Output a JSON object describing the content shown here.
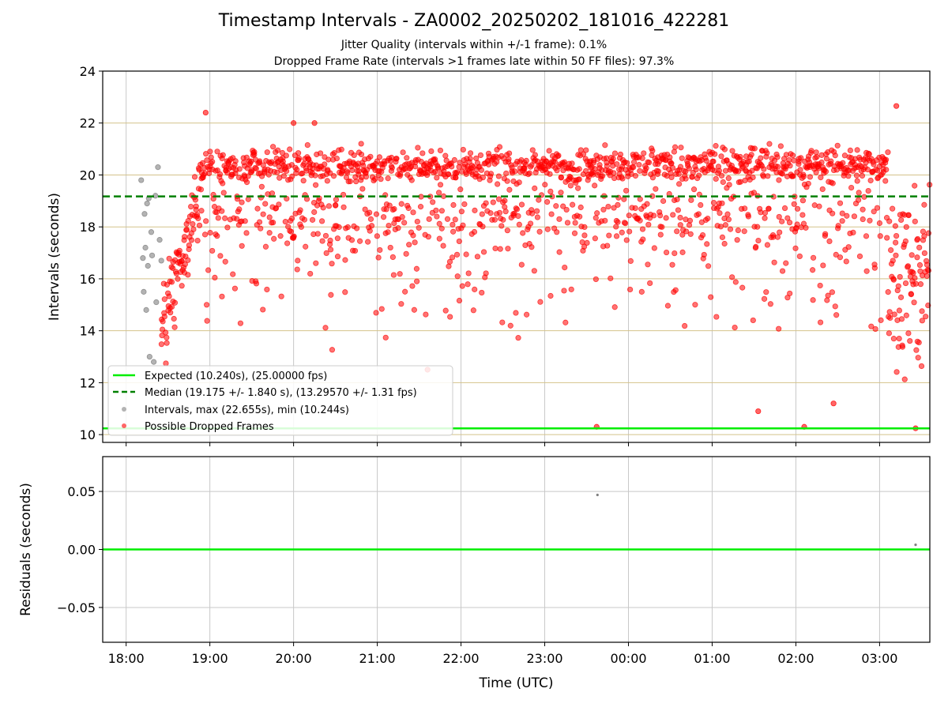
{
  "titles": {
    "main": "Timestamp Intervals - ZA0002_20250202_181016_422281",
    "jitter": "Jitter Quality (intervals within +/-1 frame): 0.1%",
    "dropped": "Dropped Frame Rate (intervals >1 frames late within 50 FF files): 97.3%"
  },
  "colors": {
    "expected": "#00ee00",
    "median": "#008000",
    "intervals": "#808080",
    "dropped": "#ff0000",
    "hgrid_top": "#d4c28a",
    "grid": "#c8c8c8"
  },
  "chart_data": [
    {
      "type": "scatter",
      "title": "",
      "xlabel": "",
      "ylabel": "Intervals (seconds)",
      "xlim_hours": [
        17.72,
        27.6
      ],
      "ylim": [
        9.7,
        24
      ],
      "yticks": [
        10,
        12,
        14,
        16,
        18,
        20,
        22,
        24
      ],
      "grid": true,
      "legend_position": "lower-left",
      "legend": [
        "Expected (10.240s), (25.00000 fps)",
        "Median (19.175 +/- 1.840 s), (13.29570 +/- 1.31 fps)",
        "Intervals, max (22.655s), min (10.244s)",
        "Possible Dropped Frames"
      ],
      "expected_interval": 10.24,
      "median_interval": 19.175,
      "series": [
        {
          "name": "Intervals, max (22.655s), min (10.244s)",
          "note": "grey points, early segment",
          "x_hours": [
            18.18,
            18.2,
            18.21,
            18.22,
            18.23,
            18.24,
            18.25,
            18.26,
            18.27,
            18.28,
            18.3,
            18.31,
            18.33,
            18.35,
            18.36,
            18.38,
            18.4,
            18.42
          ],
          "y": [
            19.8,
            16.8,
            15.5,
            18.5,
            17.2,
            14.8,
            18.9,
            16.5,
            19.1,
            13.0,
            17.8,
            16.9,
            12.8,
            19.2,
            15.1,
            20.3,
            17.5,
            16.7
          ]
        },
        {
          "name": "Possible Dropped Frames",
          "note": "red points, dense between 18:25 and 03:37 UTC; representative extremes listed",
          "x_hours": [
            18.95,
            20.0,
            20.25,
            21.6,
            23.62,
            25.55,
            26.1,
            26.45,
            27.2,
            27.43
          ],
          "y": [
            22.4,
            22.0,
            22.0,
            12.5,
            10.3,
            10.9,
            10.3,
            11.2,
            22.655,
            10.244
          ]
        }
      ]
    },
    {
      "type": "scatter",
      "xlabel": "Time (UTC)",
      "ylabel": "Residuals (seconds)",
      "xlim_hours": [
        17.72,
        27.6
      ],
      "ylim": [
        -0.08,
        0.08
      ],
      "yticks": [
        -0.05,
        0.0,
        0.05
      ],
      "ytick_labels": [
        "−0.05",
        "0.00",
        "0.05"
      ],
      "grid": true,
      "residual_line": 0.0,
      "points": [
        {
          "x_hours": 23.63,
          "y": 0.047
        },
        {
          "x_hours": 27.43,
          "y": 0.004
        }
      ]
    }
  ],
  "xtick_labels": [
    "18:00",
    "19:00",
    "20:00",
    "21:00",
    "22:00",
    "23:00",
    "00:00",
    "01:00",
    "02:00",
    "03:00"
  ],
  "xtick_hours": [
    18,
    19,
    20,
    21,
    22,
    23,
    24,
    25,
    26,
    27
  ]
}
